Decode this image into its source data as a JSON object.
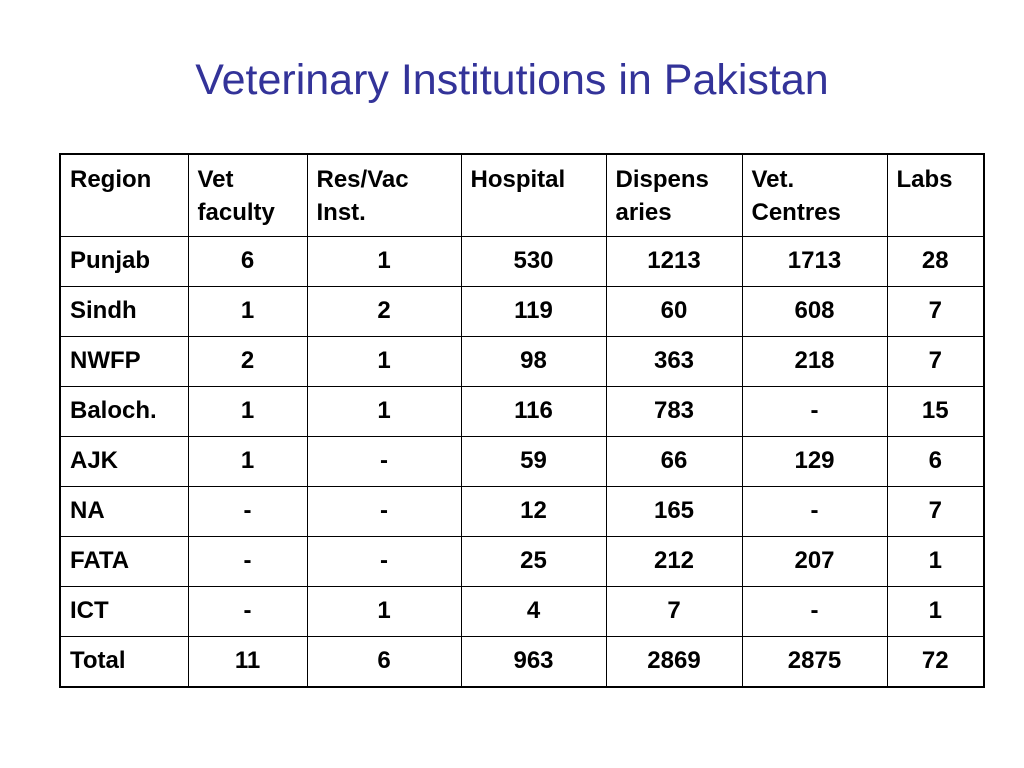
{
  "slide": {
    "title": "Veterinary Institutions in Pakistan"
  },
  "table": {
    "headers": [
      "Region",
      "Vet faculty",
      "Res/Vac Inst.",
      "Hospital",
      "Dispens aries",
      "Vet. Centres",
      "Labs"
    ],
    "rows": [
      [
        "Punjab",
        "6",
        "1",
        "530",
        "1213",
        "1713",
        "28"
      ],
      [
        "Sindh",
        "1",
        "2",
        "119",
        "60",
        "608",
        "7"
      ],
      [
        "NWFP",
        "2",
        "1",
        "98",
        "363",
        "218",
        "7"
      ],
      [
        "Baloch.",
        "1",
        "1",
        "116",
        "783",
        "-",
        "15"
      ],
      [
        "AJK",
        "1",
        "-",
        "59",
        "66",
        "129",
        "6"
      ],
      [
        "NA",
        "-",
        "-",
        "12",
        "165",
        "-",
        "7"
      ],
      [
        "FATA",
        "-",
        "-",
        "25",
        "212",
        "207",
        "1"
      ],
      [
        "ICT",
        "-",
        "1",
        "4",
        "7",
        "-",
        "1"
      ],
      [
        "Total",
        "11",
        "6",
        "963",
        "2869",
        "2875",
        "72"
      ]
    ]
  },
  "colors": {
    "title": "#333399",
    "text": "#000000",
    "border": "#000000",
    "background": "#ffffff"
  }
}
